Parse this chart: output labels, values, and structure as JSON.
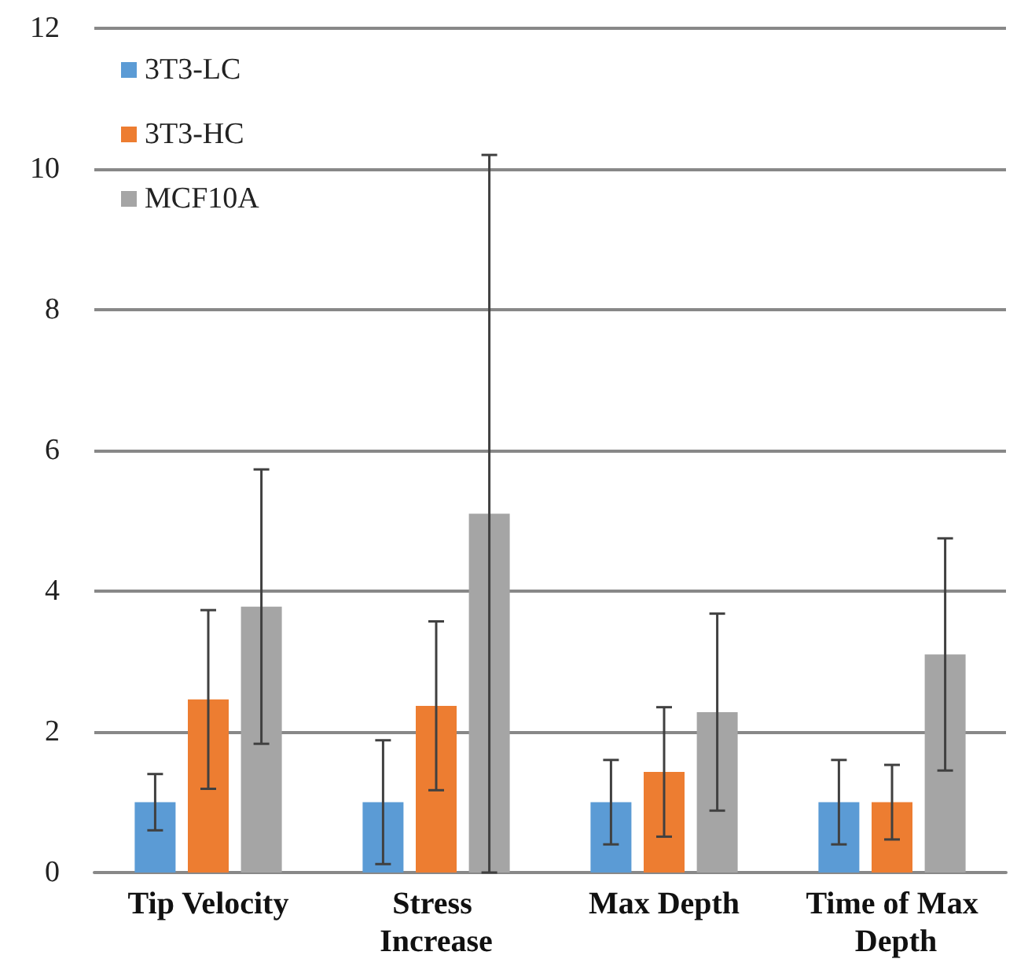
{
  "chart_data": {
    "type": "bar",
    "categories": [
      "Tip Velocity",
      "Stress Increase",
      "Max Depth",
      "Time of Max Depth"
    ],
    "series": [
      {
        "name": "3T3-LC",
        "color": "#5b9bd5",
        "values": [
          1,
          1,
          1,
          1
        ],
        "errors": [
          0.4,
          0.88,
          0.6,
          0.6
        ]
      },
      {
        "name": "3T3-HC",
        "color": "#ed7d31",
        "values": [
          2.46,
          2.37,
          1.43,
          1
        ],
        "errors": [
          1.27,
          1.2,
          0.92,
          0.53
        ]
      },
      {
        "name": "MCF10A",
        "color": "#a5a5a5",
        "values": [
          3.78,
          5.1,
          2.28,
          3.1
        ],
        "errors": [
          1.95,
          5.1,
          1.4,
          1.65
        ]
      }
    ],
    "ylim": [
      0,
      12
    ],
    "yticks": [
      0,
      2,
      4,
      6,
      8,
      10,
      12
    ],
    "grid": "y",
    "legend": "top left"
  }
}
